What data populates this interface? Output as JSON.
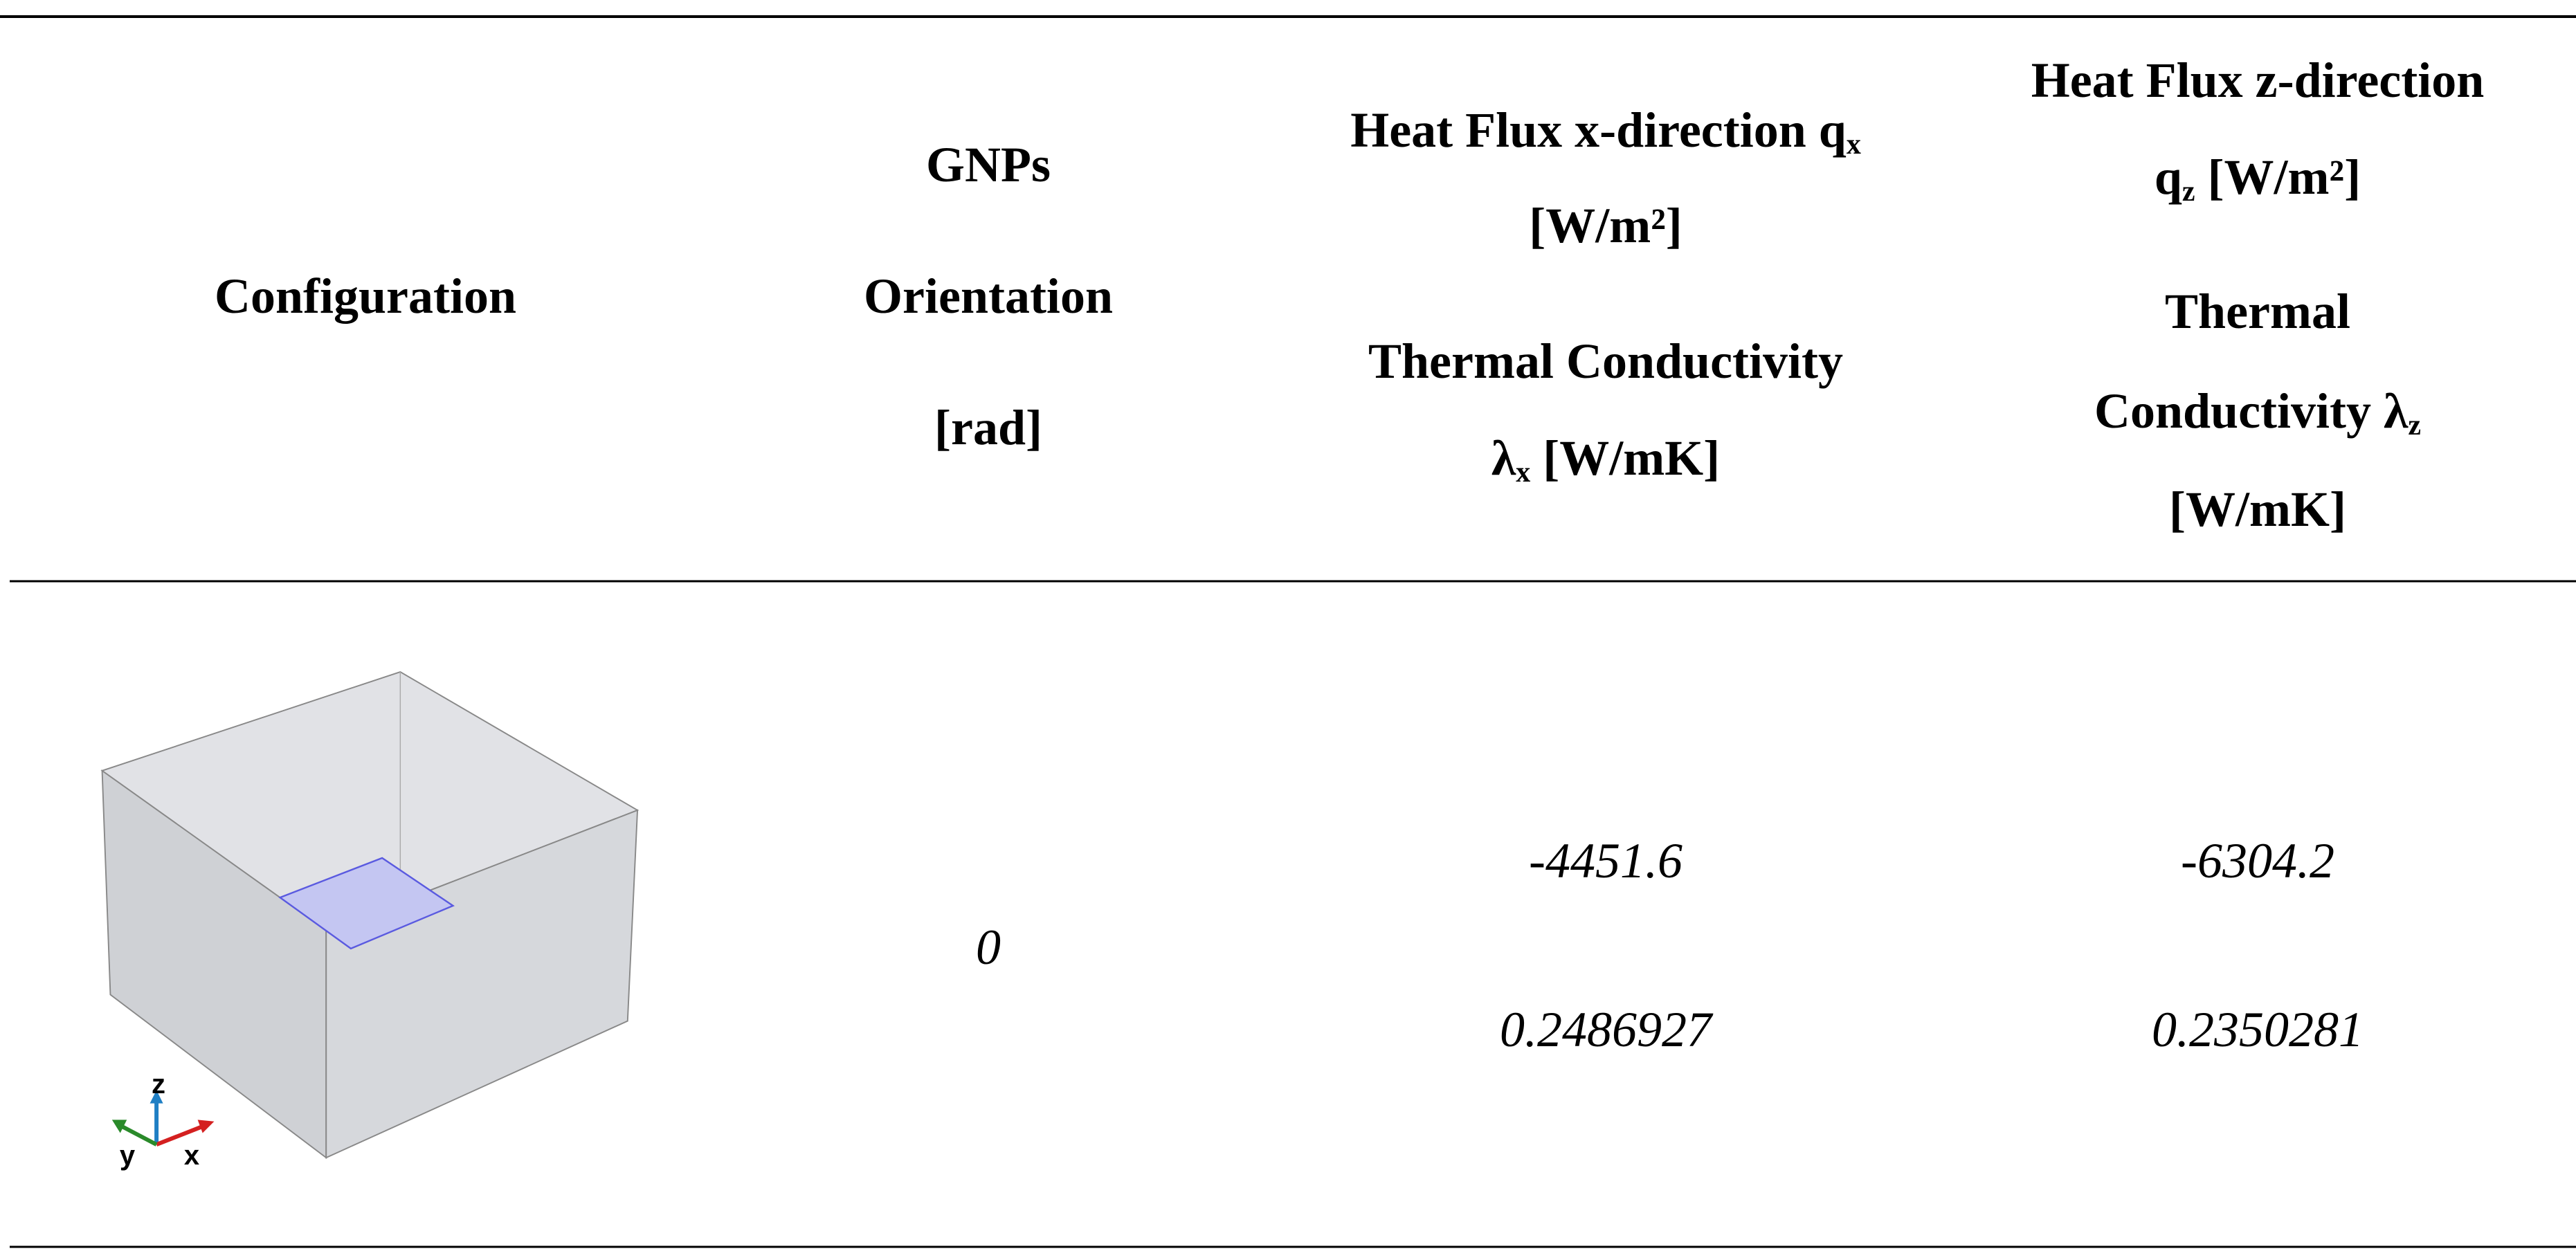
{
  "table": {
    "header": [
      {
        "lines": [
          [
            "Configuration"
          ]
        ]
      },
      {
        "lines": [
          [
            "GNPs"
          ],
          [
            "Orientation"
          ],
          [
            "[rad]"
          ]
        ]
      },
      {
        "lines": [
          [
            "Heat Flux x-direction q",
            {
              "sub": "x"
            }
          ],
          [
            "[W/m²]"
          ],
          [
            "Thermal Conductivity"
          ],
          [
            "λ",
            {
              "sub": "x"
            },
            " [W/mK]"
          ]
        ]
      },
      {
        "lines": [
          [
            "Heat Flux z-direction"
          ],
          [
            "q",
            {
              "sub": "z"
            },
            " [W/m²]"
          ],
          [
            "Thermal"
          ],
          [
            "Conductivity λ",
            {
              "sub": "z"
            }
          ],
          [
            "[W/mK]"
          ]
        ]
      }
    ],
    "rows": [
      {
        "configuration": {
          "axis_labels": [
            "z",
            "y",
            "x"
          ]
        },
        "orientation": 0,
        "heat_flux_x": -4451.6,
        "heat_flux_z": -6304.2,
        "conductivity_x": 0.2486927,
        "conductivity_z": 0.2350281
      }
    ]
  }
}
